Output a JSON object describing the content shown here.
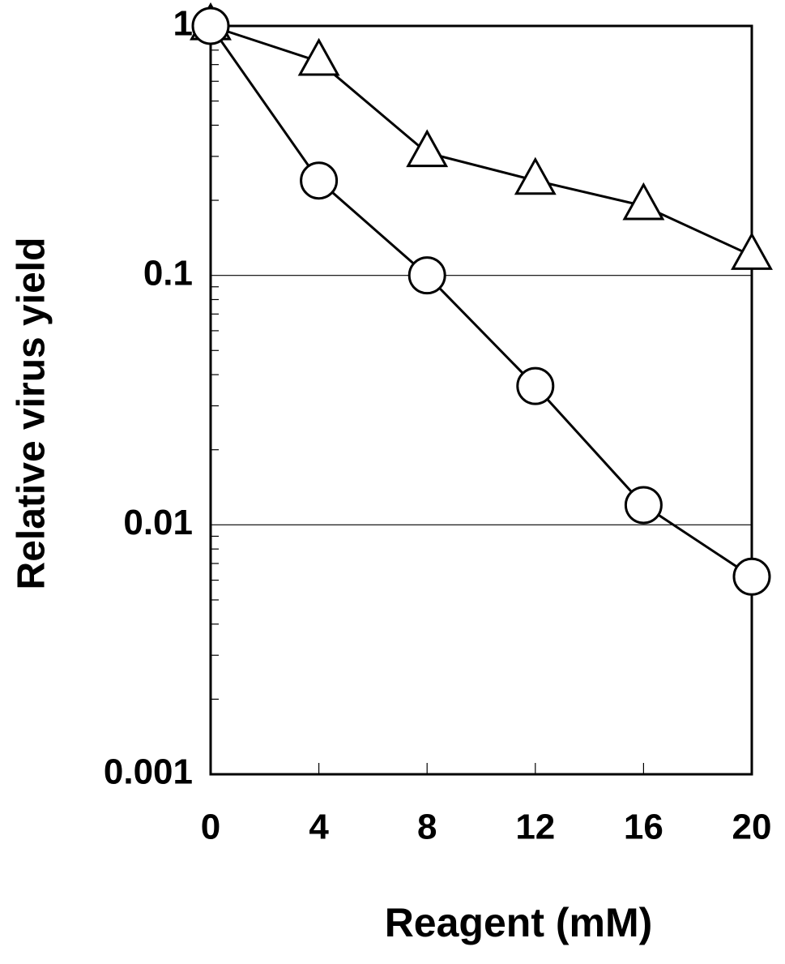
{
  "chart_data": {
    "type": "line",
    "xlabel": "Reagent (mM)",
    "ylabel": "Relative virus yield",
    "x": [
      0,
      4,
      8,
      12,
      16,
      20
    ],
    "series": [
      {
        "color": "#000000",
        "marker": "triangle",
        "values": [
          1,
          0.72,
          0.31,
          0.24,
          0.19,
          0.12
        ]
      },
      {
        "color": "#000000",
        "marker": "circle",
        "values": [
          1,
          0.24,
          0.1,
          0.036,
          0.012,
          0.0062
        ]
      }
    ],
    "xlim": [
      0,
      20
    ],
    "xticks": [
      0,
      4,
      8,
      12,
      16,
      20
    ],
    "ylim": [
      0.001,
      1
    ],
    "yticks": [
      0.001,
      0.01,
      0.1,
      1
    ],
    "yscale": "log",
    "yminorticks": [
      0.002,
      0.003,
      0.004,
      0.005,
      0.006,
      0.007,
      0.008,
      0.009,
      0.02,
      0.03,
      0.04,
      0.05,
      0.06,
      0.07,
      0.08,
      0.09,
      0.2,
      0.3,
      0.4,
      0.5,
      0.6,
      0.7,
      0.8,
      0.9
    ],
    "grid": true
  }
}
